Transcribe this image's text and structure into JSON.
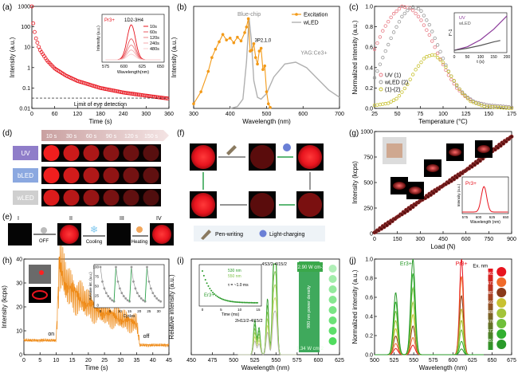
{
  "panel_labels": [
    "(a)",
    "(b)",
    "(c)",
    "(d)",
    "(e)",
    "(f)",
    "(g)",
    "(h)",
    "(i)",
    "(j)"
  ],
  "chart_data": [
    {
      "panel": "(a)",
      "type": "scatter",
      "xlabel": "Time (s)",
      "ylabel": "Intensity (a.u.)",
      "xlim": [
        0,
        360
      ],
      "ylim": [
        0.01,
        1000
      ],
      "yscale": "log",
      "xticks": [
        0,
        60,
        120,
        180,
        240,
        300,
        360
      ],
      "yticks": [
        "0.01",
        "0.1",
        "1",
        "10",
        "100",
        "1000"
      ],
      "series": [
        {
          "color": "#e8141e",
          "decay": {
            "x": [
              0,
              2,
              5,
              10,
              20,
              40,
              60,
              90,
              120,
              180,
              240,
              300,
              360
            ],
            "y": [
              1000,
              260,
              90,
              30,
              8,
              2.2,
              0.9,
              0.4,
              0.22,
              0.1,
              0.06,
              0.042,
              0.03
            ]
          }
        }
      ],
      "annotations": [
        "Limit of eye detection"
      ],
      "threshold_y": 0.032,
      "inset": {
        "title": "Pr3+",
        "transition": "1D2-3H4",
        "xlabel": "Wavelength(nm)",
        "ylabel": "Intensity (a.u.)",
        "xticks": [
          "575",
          "600",
          "625",
          "650"
        ],
        "legend": [
          "10s",
          "60s",
          "120s",
          "240s",
          "480s"
        ],
        "peak_nm": 610,
        "relative_peaks": [
          1.0,
          0.6,
          0.42,
          0.28,
          0.16
        ],
        "colors": [
          "#e8141e",
          "#e75a60",
          "#ee8488",
          "#f3aaad",
          "#f8cdcf"
        ]
      }
    },
    {
      "panel": "(b)",
      "type": "line",
      "xlabel": "Wavelength (nm)",
      "ylabel": "Intensity (a.u.)",
      "xlim": [
        300,
        700
      ],
      "xticks": [
        300,
        400,
        500,
        600,
        700
      ],
      "legend": [
        "Excitation",
        "wLED"
      ],
      "annotations": [
        "Blue-chip",
        "YAG:Ce3+",
        "3P2,1,0"
      ],
      "series": [
        {
          "name": "Excitation",
          "color": "#f39a18",
          "x": [
            300,
            320,
            340,
            350,
            360,
            370,
            380,
            390,
            400,
            410,
            420,
            430,
            440,
            445,
            450,
            455,
            460,
            465,
            470,
            475,
            480,
            485,
            490,
            495,
            500,
            505,
            510
          ],
          "y": [
            0.05,
            0.18,
            0.4,
            0.55,
            0.64,
            0.72,
            0.8,
            0.74,
            0.76,
            0.71,
            0.77,
            0.73,
            0.82,
            0.88,
            0.97,
            0.62,
            0.63,
            0.7,
            0.55,
            0.48,
            0.62,
            0.65,
            0.42,
            0.46,
            0.18,
            0.05,
            0.01
          ]
        },
        {
          "name": "wLED",
          "color": "#b0b0b0",
          "x": [
            400,
            420,
            435,
            445,
            452,
            458,
            465,
            475,
            485,
            500,
            520,
            550,
            580,
            610,
            640,
            670,
            700
          ],
          "y": [
            0.0,
            0.02,
            0.1,
            0.5,
            0.98,
            0.75,
            0.3,
            0.12,
            0.1,
            0.16,
            0.34,
            0.48,
            0.5,
            0.44,
            0.32,
            0.2,
            0.12
          ]
        }
      ]
    },
    {
      "panel": "(c)",
      "type": "line",
      "xlabel": "Temperature (°C)",
      "ylabel": "Normalized intensity (a.u.)",
      "xlim": [
        25,
        175
      ],
      "ylim": [
        0,
        1.0
      ],
      "xticks": [
        25,
        50,
        75,
        100,
        125,
        150,
        175
      ],
      "yticks": [
        "0.0",
        "0.2",
        "0.4",
        "0.6",
        "0.8",
        "1.0"
      ],
      "legend": [
        "UV (1)",
        "wLED (2)",
        "(1)-(2)"
      ],
      "series": [
        {
          "name": "UV (1)",
          "color": "#e87a84",
          "x": [
            25,
            35,
            45,
            55,
            65,
            75,
            85,
            95,
            105,
            115,
            125,
            135,
            150,
            165,
            175
          ],
          "y": [
            0.58,
            0.78,
            0.92,
            1.0,
            0.98,
            0.88,
            0.72,
            0.52,
            0.34,
            0.2,
            0.11,
            0.06,
            0.03,
            0.02,
            0.01
          ]
        },
        {
          "name": "wLED (2)",
          "color": "#9a9a9a",
          "x": [
            25,
            35,
            45,
            55,
            65,
            75,
            85,
            95,
            105,
            115,
            125,
            135,
            150,
            165,
            175
          ],
          "y": [
            0.3,
            0.52,
            0.73,
            0.9,
            1.0,
            0.97,
            0.82,
            0.6,
            0.38,
            0.22,
            0.12,
            0.06,
            0.03,
            0.02,
            0.01
          ]
        },
        {
          "name": "(1)-(2)",
          "color": "#c8c230",
          "x": [
            25,
            40,
            50,
            60,
            70,
            80,
            90,
            100,
            110,
            120,
            130,
            145,
            160,
            175
          ],
          "y": [
            0.03,
            0.05,
            0.1,
            0.22,
            0.38,
            0.5,
            0.53,
            0.45,
            0.3,
            0.16,
            0.07,
            0.02,
            0.01,
            0.0
          ]
        }
      ],
      "inset": {
        "xlabel": "t (s)",
        "ylabel": "I^-1",
        "xticks": [
          "0",
          "50",
          "100",
          "150",
          "200"
        ],
        "legend": [
          "UV",
          "wLED"
        ],
        "series": [
          {
            "name": "UV",
            "color": "#8b3a9a",
            "x": [
              0,
              50,
              100,
              150,
              200
            ],
            "y": [
              0.02,
              0.12,
              0.32,
              0.62,
              1.0
            ]
          },
          {
            "name": "wLED",
            "color": "#555555",
            "x": [
              0,
              50,
              100,
              150,
              175
            ],
            "y": [
              0.02,
              0.08,
              0.16,
              0.26,
              0.3
            ]
          }
        ]
      }
    },
    {
      "panel": "(g)",
      "type": "scatter",
      "xlabel": "Load (N)",
      "ylabel": "Intensity (kcps)",
      "xlim": [
        0,
        900
      ],
      "ylim": [
        0,
        1000
      ],
      "xticks": [
        0,
        150,
        300,
        450,
        600,
        750,
        900
      ],
      "yticks": [
        "0",
        "250",
        "500",
        "750",
        "1000"
      ],
      "series": [
        {
          "color": "#a33a3a",
          "x": [
            0,
            100,
            200,
            300,
            400,
            500,
            600,
            700,
            800,
            900
          ],
          "y": [
            10,
            110,
            215,
            320,
            420,
            520,
            620,
            730,
            840,
            950
          ]
        }
      ],
      "inset": {
        "title": "Pr3+",
        "xlabel": "Wavelength (nm)",
        "ylabel": "Intensity (a.u.)",
        "xticks": [
          "575",
          "600",
          "625",
          "650"
        ],
        "peak_nm": 610
      }
    },
    {
      "panel": "(h)",
      "type": "line",
      "xlabel": "Time (s)",
      "ylabel": "Intensity (kcps)",
      "xlim": [
        0,
        45
      ],
      "ylim": [
        0,
        40
      ],
      "xticks": [
        0,
        5,
        10,
        15,
        20,
        25,
        30,
        35,
        40,
        45
      ],
      "yticks": [
        "0",
        "10",
        "20",
        "30",
        "40"
      ],
      "annotations": [
        "on",
        "off"
      ],
      "series": [
        {
          "color": "#ef8c1a",
          "envelope": {
            "t": [
              0,
              10,
              11,
              13,
              16,
              20,
              24,
              28,
              32,
              35,
              36,
              45
            ],
            "y": [
              6,
              6,
              38,
              30,
              25,
              21,
              18,
              16,
              14,
              13,
              4,
              4
            ]
          }
        }
      ],
      "inset": {
        "xlabel": "Cycles",
        "ylabel": "Relative int. (a.u.)",
        "xticks": [
          "0",
          "5",
          "10",
          "15",
          "20",
          "25",
          "30"
        ],
        "yticks": [
          "0",
          "25",
          "50",
          "75",
          "100"
        ],
        "cycle_decay": [
          100,
          62,
          44,
          32,
          24,
          18,
          13,
          10
        ]
      }
    },
    {
      "panel": "(i)",
      "type": "line",
      "xlabel": "Wavelength (nm)",
      "ylabel": "Relative intensity (a.u.)",
      "xlim": [
        450,
        625
      ],
      "ylim": [
        0,
        1
      ],
      "xticks": [
        450,
        475,
        500,
        525,
        550,
        575,
        600,
        625
      ],
      "annotations": [
        "2H11/2-4I15/2",
        "4S3/2-4I15/2",
        "980 nm power density",
        "22.90 W cm-2",
        "1.34 W cm-2"
      ],
      "peaks_nm": [
        525,
        530,
        540,
        547,
        550
      ],
      "peak_heights": [
        0.38,
        0.3,
        0.62,
        0.9,
        1.0
      ],
      "inset": {
        "title": "Er3+",
        "xlabel": "Time (ms)",
        "legend": [
          "530 nm",
          "550 nm"
        ],
        "annotation": "τ = ~1.0 ms",
        "xticks": [
          "0",
          "5",
          "10",
          "15"
        ]
      }
    },
    {
      "panel": "(j)",
      "type": "line",
      "xlabel": "Wavelength (nm)",
      "ylabel": "Normalized intensity (a.u.)",
      "xlim": [
        500,
        675
      ],
      "ylim": [
        0,
        1.0
      ],
      "xticks": [
        500,
        525,
        550,
        575,
        600,
        625,
        650,
        675
      ],
      "yticks": [
        "0.0",
        "0.2",
        "0.4",
        "0.6",
        "0.8",
        "1.0"
      ],
      "labels": [
        "Er3+",
        "Pr3+",
        "Ex. nm"
      ],
      "excitation_wavelengths": [
        "463",
        "473",
        "487",
        "492",
        "488",
        "476",
        "472",
        "457"
      ],
      "series_colors": [
        "#e8141e",
        "#f06a2a",
        "#8a3a1a",
        "#c8c232",
        "#a3c43a",
        "#6fbf3a",
        "#32b030",
        "#2a9a2a"
      ],
      "er_peaks": [
        0.1,
        0.18,
        0.3,
        0.42,
        0.55,
        0.7,
        0.85,
        1.0
      ],
      "pr_peaks": [
        1.0,
        0.82,
        0.62,
        0.48,
        0.36,
        0.26,
        0.14,
        0.06
      ]
    }
  ],
  "panel_d": {
    "times": [
      "10 s",
      "30 s",
      "60 s",
      "90 s",
      "120 s",
      "150 s"
    ],
    "rows": [
      "UV",
      "bLED",
      "wLED"
    ]
  },
  "panel_e": {
    "steps": [
      "I",
      "II",
      "III",
      "IV"
    ],
    "labels": [
      "OFF",
      "Cooling",
      "Heating"
    ]
  },
  "panel_f": {
    "legend": [
      "Pen-writing",
      "Light-charging"
    ]
  }
}
